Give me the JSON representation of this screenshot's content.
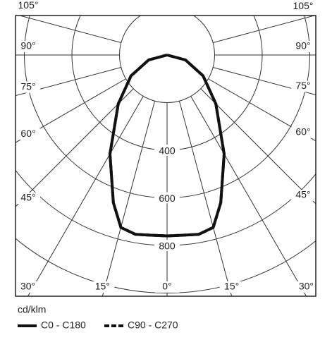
{
  "chart_data": {
    "type": "polar",
    "unit_label": "cd/klm",
    "rlim": [
      0,
      1200
    ],
    "rticks": [
      400,
      600,
      800
    ],
    "rminor": [
      200,
      1000,
      1200
    ],
    "angle_ticks": [
      {
        "value": 0,
        "label": "0°"
      },
      {
        "value": 15,
        "label": "15°"
      },
      {
        "value": 30,
        "label": "30°"
      },
      {
        "value": 45,
        "label": "45°"
      },
      {
        "value": 60,
        "label": "60°"
      },
      {
        "value": 75,
        "label": "75°"
      },
      {
        "value": 90,
        "label": "90°"
      },
      {
        "value": 105,
        "label": "105°"
      }
    ],
    "angles": [
      -90,
      -75,
      -60,
      -45,
      -30,
      -20,
      -15,
      -10,
      -5,
      0,
      5,
      10,
      15,
      20,
      30,
      45,
      60,
      75,
      90
    ],
    "series": [
      {
        "name": "C0 - C180",
        "color": "#111",
        "dash": false,
        "values": [
          0,
          80,
          175,
          290,
          480,
          660,
          750,
          765,
          760,
          760,
          760,
          765,
          750,
          660,
          480,
          290,
          175,
          80,
          0
        ]
      },
      {
        "name": "C90 - C270",
        "color": "#111",
        "dash": true,
        "values": [
          0,
          80,
          175,
          290,
          480,
          660,
          750,
          765,
          760,
          760,
          760,
          765,
          750,
          660,
          480,
          290,
          175,
          80,
          0
        ]
      }
    ]
  }
}
